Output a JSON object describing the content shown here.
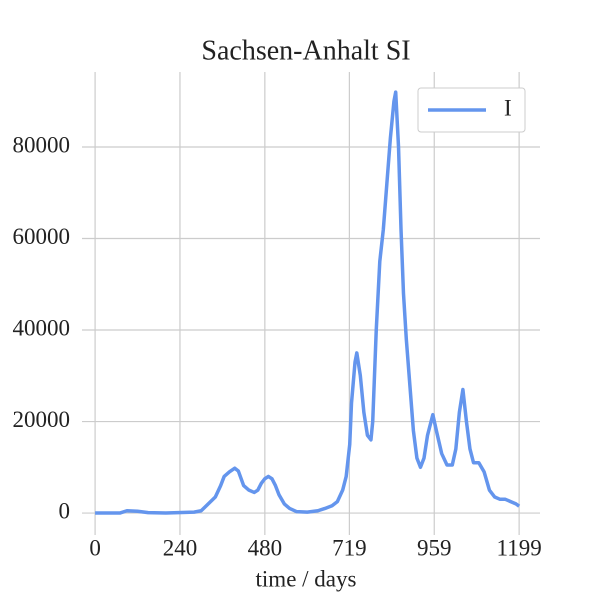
{
  "chart_data": {
    "type": "line",
    "title": "Sachsen-Anhalt SI",
    "xlabel": "time / days",
    "x": [
      0,
      70,
      90,
      120,
      150,
      200,
      280,
      300,
      320,
      340,
      355,
      365,
      380,
      395,
      405,
      420,
      435,
      450,
      460,
      470,
      480,
      490,
      500,
      510,
      520,
      535,
      550,
      570,
      600,
      630,
      650,
      670,
      685,
      700,
      710,
      720,
      725,
      735,
      740,
      750,
      760,
      770,
      780,
      785,
      795,
      805,
      815,
      825,
      835,
      845,
      850,
      858,
      865,
      872,
      880,
      890,
      900,
      910,
      920,
      930,
      940,
      950,
      955,
      965,
      980,
      995,
      1010,
      1020,
      1030,
      1040,
      1050,
      1060,
      1070,
      1085,
      1100,
      1115,
      1130,
      1145,
      1160,
      1175,
      1190,
      1199
    ],
    "series": [
      {
        "name": "I",
        "color": "#6495ed",
        "values": [
          0,
          0,
          500,
          400,
          100,
          0,
          200,
          500,
          2000,
          3500,
          6000,
          8000,
          9000,
          9800,
          9200,
          6000,
          5000,
          4500,
          5000,
          6500,
          7500,
          8000,
          7500,
          6000,
          4000,
          2000,
          1000,
          300,
          200,
          500,
          1000,
          1600,
          2500,
          5000,
          8000,
          15000,
          24000,
          33000,
          35000,
          30000,
          22000,
          17000,
          16000,
          20000,
          40000,
          55000,
          62000,
          72000,
          82000,
          90000,
          92000,
          80000,
          62000,
          48000,
          38000,
          28000,
          18000,
          12000,
          10000,
          12000,
          17000,
          20000,
          21500,
          18000,
          13000,
          10500,
          10500,
          14000,
          22000,
          27000,
          20000,
          14000,
          11000,
          11000,
          9000,
          5000,
          3500,
          3000,
          3000,
          2500,
          2000,
          1500
        ]
      }
    ],
    "xlim": [
      -37,
      1258
    ],
    "ylim": [
      -4800,
      96400
    ],
    "xticks": [
      0,
      240,
      480,
      719,
      959,
      1199
    ],
    "yticks": [
      0,
      20000,
      40000,
      60000,
      80000
    ],
    "grid": true,
    "legend": "upper right"
  }
}
